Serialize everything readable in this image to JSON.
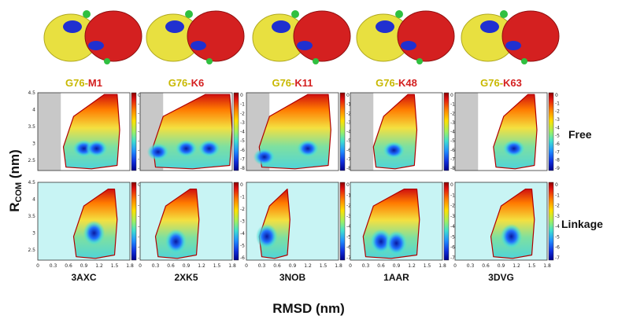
{
  "chart_data": {
    "type": "heatmap",
    "title": "",
    "xlabel": "RMSD (nm)",
    "ylabel_main": "R",
    "ylabel_sub": "COM",
    "ylabel_unit": " (nm)",
    "x_ticks": [
      "0",
      "0.3",
      "0.6",
      "0.9",
      "1.2",
      "1.5",
      "1.8"
    ],
    "y_ticks": [
      "2.5",
      "3",
      "3.5",
      "4",
      "4.5"
    ],
    "xlim": [
      0,
      1.8
    ],
    "ylim": [
      2.2,
      4.5
    ],
    "row_labels": [
      "Free",
      "Linkage"
    ],
    "columns": [
      {
        "pair_left": "G76",
        "pair_sep": "-",
        "pair_right": "M1",
        "pdb": "3AXC",
        "free_cb": [
          "0",
          "-1",
          "-2",
          "-3",
          "-4",
          "-5",
          "-6",
          "-7",
          "-8"
        ],
        "link_cb": [
          "0",
          "-1",
          "-2",
          "-3",
          "-4",
          "-5",
          "-6",
          "-7"
        ],
        "free_minima": [
          [
            0.9,
            2.85
          ],
          [
            1.15,
            2.85
          ]
        ],
        "link_minima": [
          [
            1.1,
            3.0
          ]
        ]
      },
      {
        "pair_left": "G76",
        "pair_sep": "-",
        "pair_right": "K6",
        "pdb": "2XK5",
        "free_cb": [
          "0",
          "-1",
          "-2",
          "-3",
          "-4",
          "-5",
          "-6",
          "-7",
          "-8"
        ],
        "link_cb": [
          "0",
          "-1",
          "-2",
          "-3",
          "-4",
          "-5",
          "-6"
        ],
        "free_minima": [
          [
            0.35,
            2.75
          ],
          [
            0.9,
            2.85
          ],
          [
            1.35,
            2.85
          ]
        ],
        "link_minima": [
          [
            0.7,
            2.75
          ]
        ]
      },
      {
        "pair_left": "G76",
        "pair_sep": "-",
        "pair_right": "K11",
        "pdb": "3NOB",
        "free_cb": [
          "0",
          "-1",
          "-2",
          "-3",
          "-4",
          "-5",
          "-6",
          "-7",
          "-8"
        ],
        "link_cb": [
          "0",
          "-1",
          "-2",
          "-3",
          "-4",
          "-5",
          "-6",
          "-7"
        ],
        "free_minima": [
          [
            0.35,
            2.6
          ],
          [
            1.2,
            2.85
          ]
        ],
        "link_minima": [
          [
            0.4,
            2.9
          ]
        ]
      },
      {
        "pair_left": "G76",
        "pair_sep": "-",
        "pair_right": "K48",
        "pdb": "1AAR",
        "free_cb": [
          "0",
          "-1",
          "-2",
          "-3",
          "-4",
          "-5",
          "-6",
          "-7",
          "-8"
        ],
        "link_cb": [
          "0",
          "-1",
          "-2",
          "-3",
          "-4",
          "-5",
          "-6",
          "-7"
        ],
        "free_minima": [
          [
            0.85,
            2.8
          ]
        ],
        "link_minima": [
          [
            0.6,
            2.75
          ],
          [
            0.9,
            2.7
          ]
        ]
      },
      {
        "pair_left": "G76",
        "pair_sep": "-",
        "pair_right": "K63",
        "pdb": "3DVG",
        "free_cb": [
          "0",
          "-1",
          "-2",
          "-3",
          "-4",
          "-5",
          "-6",
          "-7",
          "-8",
          "-9"
        ],
        "link_cb": [
          "0",
          "-1",
          "-2",
          "-3",
          "-4",
          "-5",
          "-6",
          "-7"
        ],
        "free_minima": [
          [
            1.15,
            2.85
          ]
        ],
        "link_minima": [
          [
            1.1,
            2.9
          ]
        ]
      }
    ]
  },
  "colors": {
    "yellow_domain": "#e8e040",
    "red_domain": "#d42020",
    "blue_site": "#2030d0",
    "green_link": "#30c040",
    "grey_mask": "#c8c8c8",
    "cyan_bg": "#c8f4f4"
  },
  "icons": [
    "protein-structure-icon"
  ]
}
